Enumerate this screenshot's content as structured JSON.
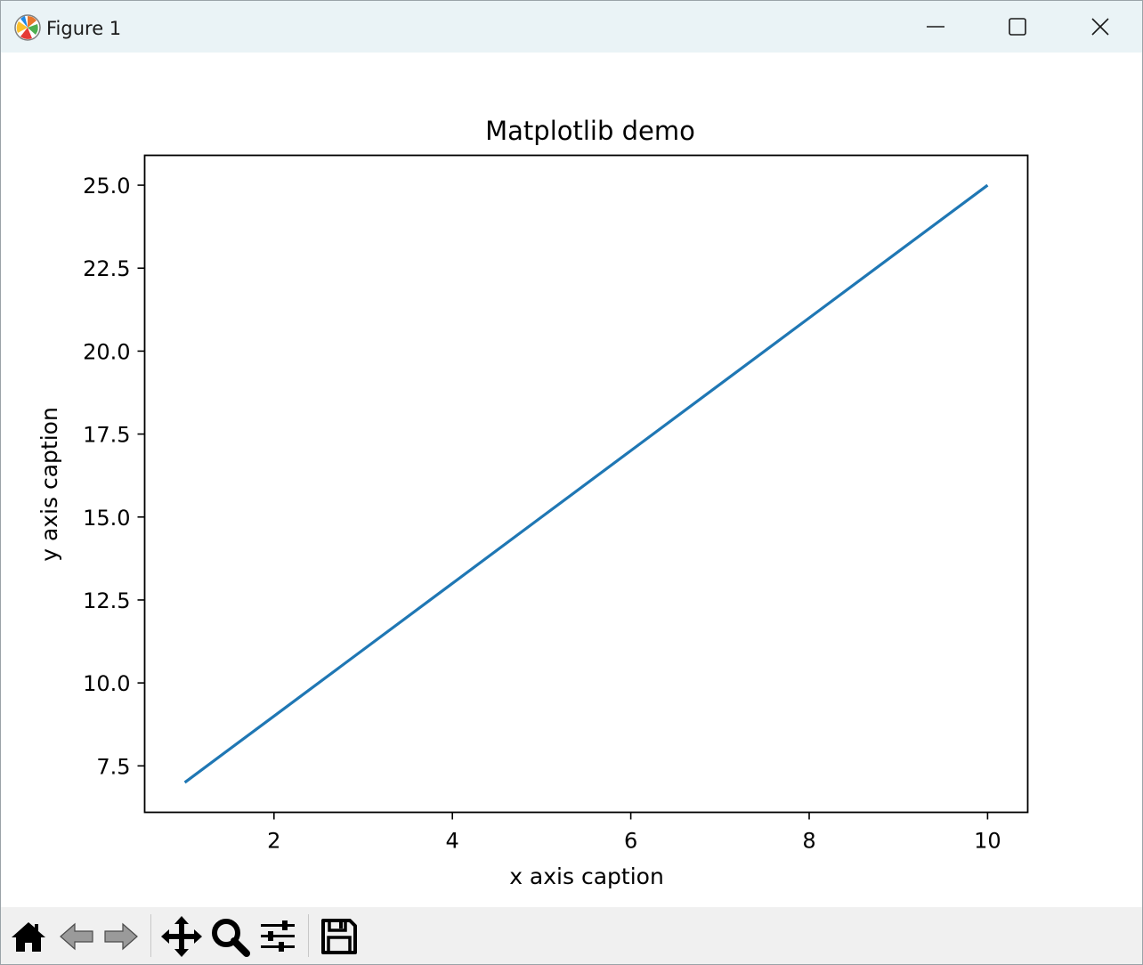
{
  "window": {
    "title": "Figure 1",
    "icons": {
      "app": "matplotlib-logo-icon",
      "minimize": "minimize-icon",
      "maximize": "maximize-icon",
      "close": "close-icon"
    }
  },
  "toolbar": {
    "tools": [
      {
        "name": "home-icon"
      },
      {
        "name": "back-arrow-icon"
      },
      {
        "name": "forward-arrow-icon"
      },
      {
        "name": "pan-move-icon"
      },
      {
        "name": "zoom-magnifier-icon"
      },
      {
        "name": "configure-subplots-icon"
      },
      {
        "name": "save-floppy-icon"
      }
    ]
  },
  "chart_data": {
    "type": "line",
    "title": "Matplotlib demo",
    "xlabel": "x axis caption",
    "ylabel": "y axis caption",
    "x": [
      1,
      2,
      3,
      4,
      5,
      6,
      7,
      8,
      9,
      10
    ],
    "series": [
      {
        "values": [
          7,
          9,
          11,
          13,
          15,
          17,
          19,
          21,
          23,
          25
        ],
        "color": "#1f77b4"
      }
    ],
    "xlim": [
      0.55,
      10.45
    ],
    "ylim": [
      6.1,
      25.9
    ],
    "xticks": [
      2,
      4,
      6,
      8,
      10
    ],
    "xtick_labels": [
      "2",
      "4",
      "6",
      "8",
      "10"
    ],
    "yticks": [
      7.5,
      10.0,
      12.5,
      15.0,
      17.5,
      20.0,
      22.5,
      25.0
    ],
    "ytick_labels": [
      "7.5",
      "10.0",
      "12.5",
      "15.0",
      "17.5",
      "20.0",
      "22.5",
      "25.0"
    ],
    "grid": false,
    "legend": "none"
  }
}
